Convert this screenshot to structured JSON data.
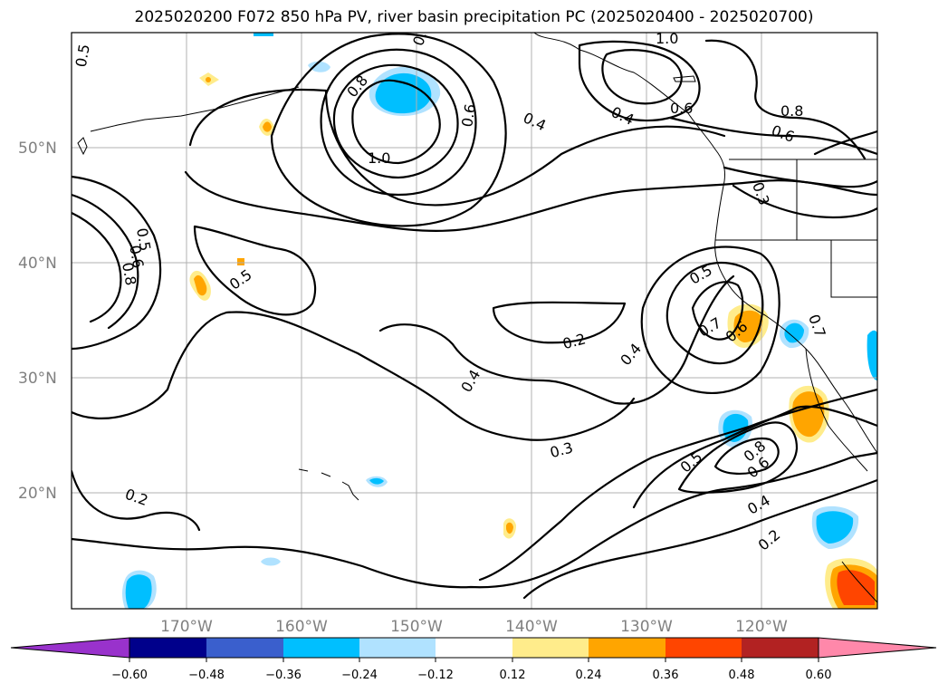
{
  "title": "2025020200 F072 850 hPa PV, river basin precipitation PC (2025020400 - 2025020700)",
  "lat_labels": [
    "50°N",
    "40°N",
    "30°N",
    "20°N"
  ],
  "lon_labels": [
    "170°W",
    "160°W",
    "150°W",
    "140°W",
    "130°W",
    "120°W"
  ],
  "colorbar": {
    "colors": [
      "#9932cc",
      "#00008b",
      "#3a5fcd",
      "#00bfff",
      "#b0e2ff",
      "#ffffff",
      "#ffec8b",
      "#ffa500",
      "#ff4500",
      "#b22222",
      "#ff88aa"
    ],
    "tick_labels": [
      "−0.60",
      "−0.48",
      "−0.36",
      "−0.24",
      "−0.12",
      "0.12",
      "0.24",
      "0.36",
      "0.48",
      "0.60"
    ]
  },
  "contour_labels": [
    "0.5",
    "0.6",
    "1.0",
    "0.8",
    "1.0",
    "0.6",
    "0.4",
    "0.4",
    "0.6",
    "0.8",
    "0.6",
    "0.3",
    "0.5",
    "0.6",
    "0.8",
    "0.5",
    "0.2",
    "0.4",
    "0.5",
    "0.7",
    "0.6",
    "0.4",
    "0.3",
    "0.5",
    "0.8",
    "0.6",
    "0.4",
    "0.2",
    "0.2",
    "0.7"
  ]
}
